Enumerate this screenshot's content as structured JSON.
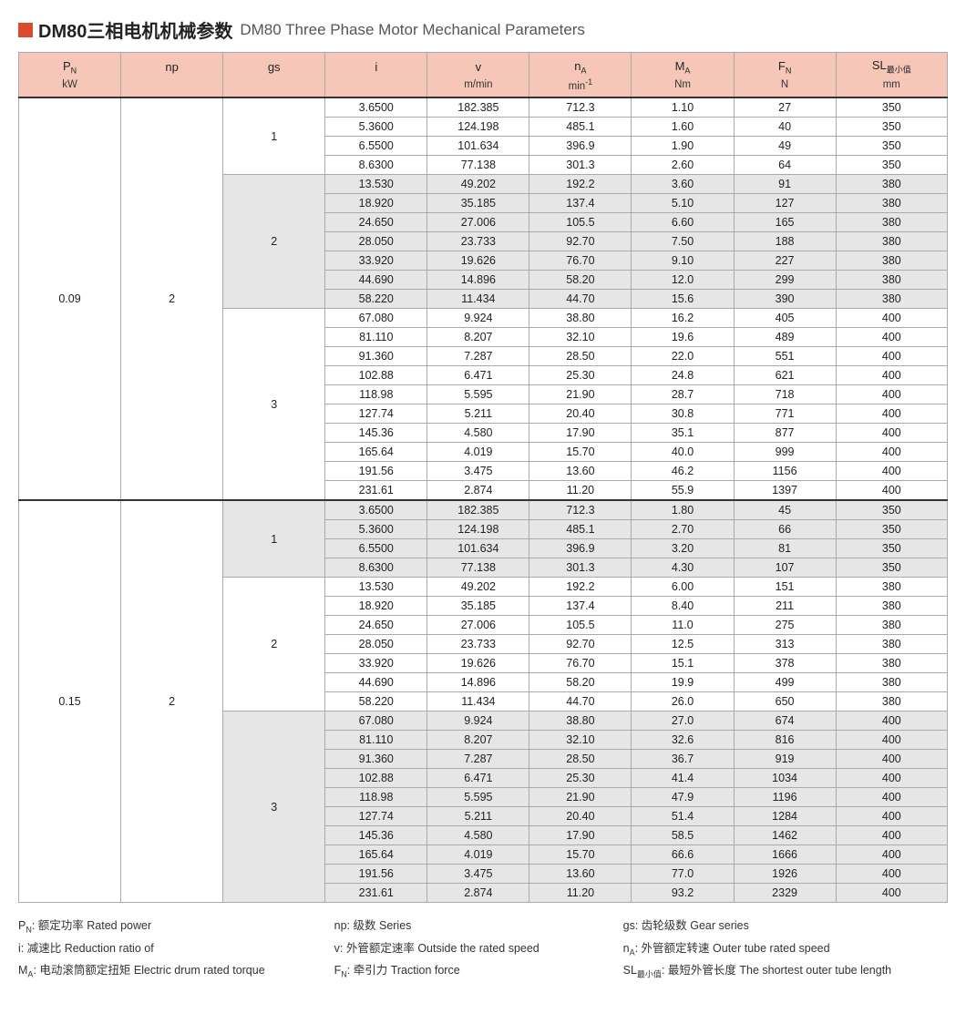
{
  "title": {
    "cn": "DM80三相电机机械参数",
    "en": "DM80 Three Phase Motor Mechanical Parameters"
  },
  "columns": [
    {
      "sym": "P",
      "sub": "N",
      "unit": "kW"
    },
    {
      "sym": "np",
      "sub": "",
      "unit": ""
    },
    {
      "sym": "gs",
      "sub": "",
      "unit": ""
    },
    {
      "sym": "i",
      "sub": "",
      "unit": ""
    },
    {
      "sym": "v",
      "sub": "",
      "unit": "m/min"
    },
    {
      "sym": "n",
      "sub": "A",
      "unit": "min",
      "sup": "-1"
    },
    {
      "sym": "M",
      "sub": "A",
      "unit": "Nm"
    },
    {
      "sym": "F",
      "sub": "N",
      "unit": "N"
    },
    {
      "sym": "SL",
      "sub": "最小值",
      "unit": "mm"
    }
  ],
  "col_widths_pct": [
    11,
    11,
    11,
    11,
    11,
    11,
    11,
    11,
    12
  ],
  "blocks": [
    {
      "pn": "0.09",
      "np": "2",
      "groups": [
        {
          "gs": "1",
          "shade": false,
          "rows": [
            [
              "3.6500",
              "182.385",
              "712.3",
              "1.10",
              "27",
              "350"
            ],
            [
              "5.3600",
              "124.198",
              "485.1",
              "1.60",
              "40",
              "350"
            ],
            [
              "6.5500",
              "101.634",
              "396.9",
              "1.90",
              "49",
              "350"
            ],
            [
              "8.6300",
              "77.138",
              "301.3",
              "2.60",
              "64",
              "350"
            ]
          ]
        },
        {
          "gs": "2",
          "shade": true,
          "rows": [
            [
              "13.530",
              "49.202",
              "192.2",
              "3.60",
              "91",
              "380"
            ],
            [
              "18.920",
              "35.185",
              "137.4",
              "5.10",
              "127",
              "380"
            ],
            [
              "24.650",
              "27.006",
              "105.5",
              "6.60",
              "165",
              "380"
            ],
            [
              "28.050",
              "23.733",
              "92.70",
              "7.50",
              "188",
              "380"
            ],
            [
              "33.920",
              "19.626",
              "76.70",
              "9.10",
              "227",
              "380"
            ],
            [
              "44.690",
              "14.896",
              "58.20",
              "12.0",
              "299",
              "380"
            ],
            [
              "58.220",
              "11.434",
              "44.70",
              "15.6",
              "390",
              "380"
            ]
          ]
        },
        {
          "gs": "3",
          "shade": false,
          "rows": [
            [
              "67.080",
              "9.924",
              "38.80",
              "16.2",
              "405",
              "400"
            ],
            [
              "81.110",
              "8.207",
              "32.10",
              "19.6",
              "489",
              "400"
            ],
            [
              "91.360",
              "7.287",
              "28.50",
              "22.0",
              "551",
              "400"
            ],
            [
              "102.88",
              "6.471",
              "25.30",
              "24.8",
              "621",
              "400"
            ],
            [
              "118.98",
              "5.595",
              "21.90",
              "28.7",
              "718",
              "400"
            ],
            [
              "127.74",
              "5.211",
              "20.40",
              "30.8",
              "771",
              "400"
            ],
            [
              "145.36",
              "4.580",
              "17.90",
              "35.1",
              "877",
              "400"
            ],
            [
              "165.64",
              "4.019",
              "15.70",
              "40.0",
              "999",
              "400"
            ],
            [
              "191.56",
              "3.475",
              "13.60",
              "46.2",
              "1156",
              "400"
            ],
            [
              "231.61",
              "2.874",
              "11.20",
              "55.9",
              "1397",
              "400"
            ]
          ]
        }
      ]
    },
    {
      "pn": "0.15",
      "np": "2",
      "groups": [
        {
          "gs": "1",
          "shade": true,
          "rows": [
            [
              "3.6500",
              "182.385",
              "712.3",
              "1.80",
              "45",
              "350"
            ],
            [
              "5.3600",
              "124.198",
              "485.1",
              "2.70",
              "66",
              "350"
            ],
            [
              "6.5500",
              "101.634",
              "396.9",
              "3.20",
              "81",
              "350"
            ],
            [
              "8.6300",
              "77.138",
              "301.3",
              "4.30",
              "107",
              "350"
            ]
          ]
        },
        {
          "gs": "2",
          "shade": false,
          "rows": [
            [
              "13.530",
              "49.202",
              "192.2",
              "6.00",
              "151",
              "380"
            ],
            [
              "18.920",
              "35.185",
              "137.4",
              "8.40",
              "211",
              "380"
            ],
            [
              "24.650",
              "27.006",
              "105.5",
              "11.0",
              "275",
              "380"
            ],
            [
              "28.050",
              "23.733",
              "92.70",
              "12.5",
              "313",
              "380"
            ],
            [
              "33.920",
              "19.626",
              "76.70",
              "15.1",
              "378",
              "380"
            ],
            [
              "44.690",
              "14.896",
              "58.20",
              "19.9",
              "499",
              "380"
            ],
            [
              "58.220",
              "11.434",
              "44.70",
              "26.0",
              "650",
              "380"
            ]
          ]
        },
        {
          "gs": "3",
          "shade": true,
          "rows": [
            [
              "67.080",
              "9.924",
              "38.80",
              "27.0",
              "674",
              "400"
            ],
            [
              "81.110",
              "8.207",
              "32.10",
              "32.6",
              "816",
              "400"
            ],
            [
              "91.360",
              "7.287",
              "28.50",
              "36.7",
              "919",
              "400"
            ],
            [
              "102.88",
              "6.471",
              "25.30",
              "41.4",
              "1034",
              "400"
            ],
            [
              "118.98",
              "5.595",
              "21.90",
              "47.9",
              "1196",
              "400"
            ],
            [
              "127.74",
              "5.211",
              "20.40",
              "51.4",
              "1284",
              "400"
            ],
            [
              "145.36",
              "4.580",
              "17.90",
              "58.5",
              "1462",
              "400"
            ],
            [
              "165.64",
              "4.019",
              "15.70",
              "66.6",
              "1666",
              "400"
            ],
            [
              "191.56",
              "3.475",
              "13.60",
              "77.0",
              "1926",
              "400"
            ],
            [
              "231.61",
              "2.874",
              "11.20",
              "93.2",
              "2329",
              "400"
            ]
          ]
        }
      ]
    }
  ],
  "legend": [
    {
      "sym": "P",
      "sub": "N",
      "text": ": 额定功率 Rated power"
    },
    {
      "sym": "np",
      "sub": "",
      "text": ": 级数 Series"
    },
    {
      "sym": "gs",
      "sub": "",
      "text": ": 齿轮级数 Gear series"
    },
    {
      "sym": "i",
      "sub": "",
      "text": ": 减速比 Reduction ratio of"
    },
    {
      "sym": "v",
      "sub": "",
      "text": ": 外管额定速率 Outside the rated speed"
    },
    {
      "sym": "n",
      "sub": "A",
      "text": ": 外管额定转速 Outer tube rated speed"
    },
    {
      "sym": "M",
      "sub": "A",
      "text": ": 电动滚筒额定扭矩 Electric drum rated torque"
    },
    {
      "sym": "F",
      "sub": "N",
      "text": ": 牵引力 Traction force"
    },
    {
      "sym": "SL",
      "sub": "最小值",
      "text": ": 最短外管长度 The shortest outer tube length"
    }
  ]
}
